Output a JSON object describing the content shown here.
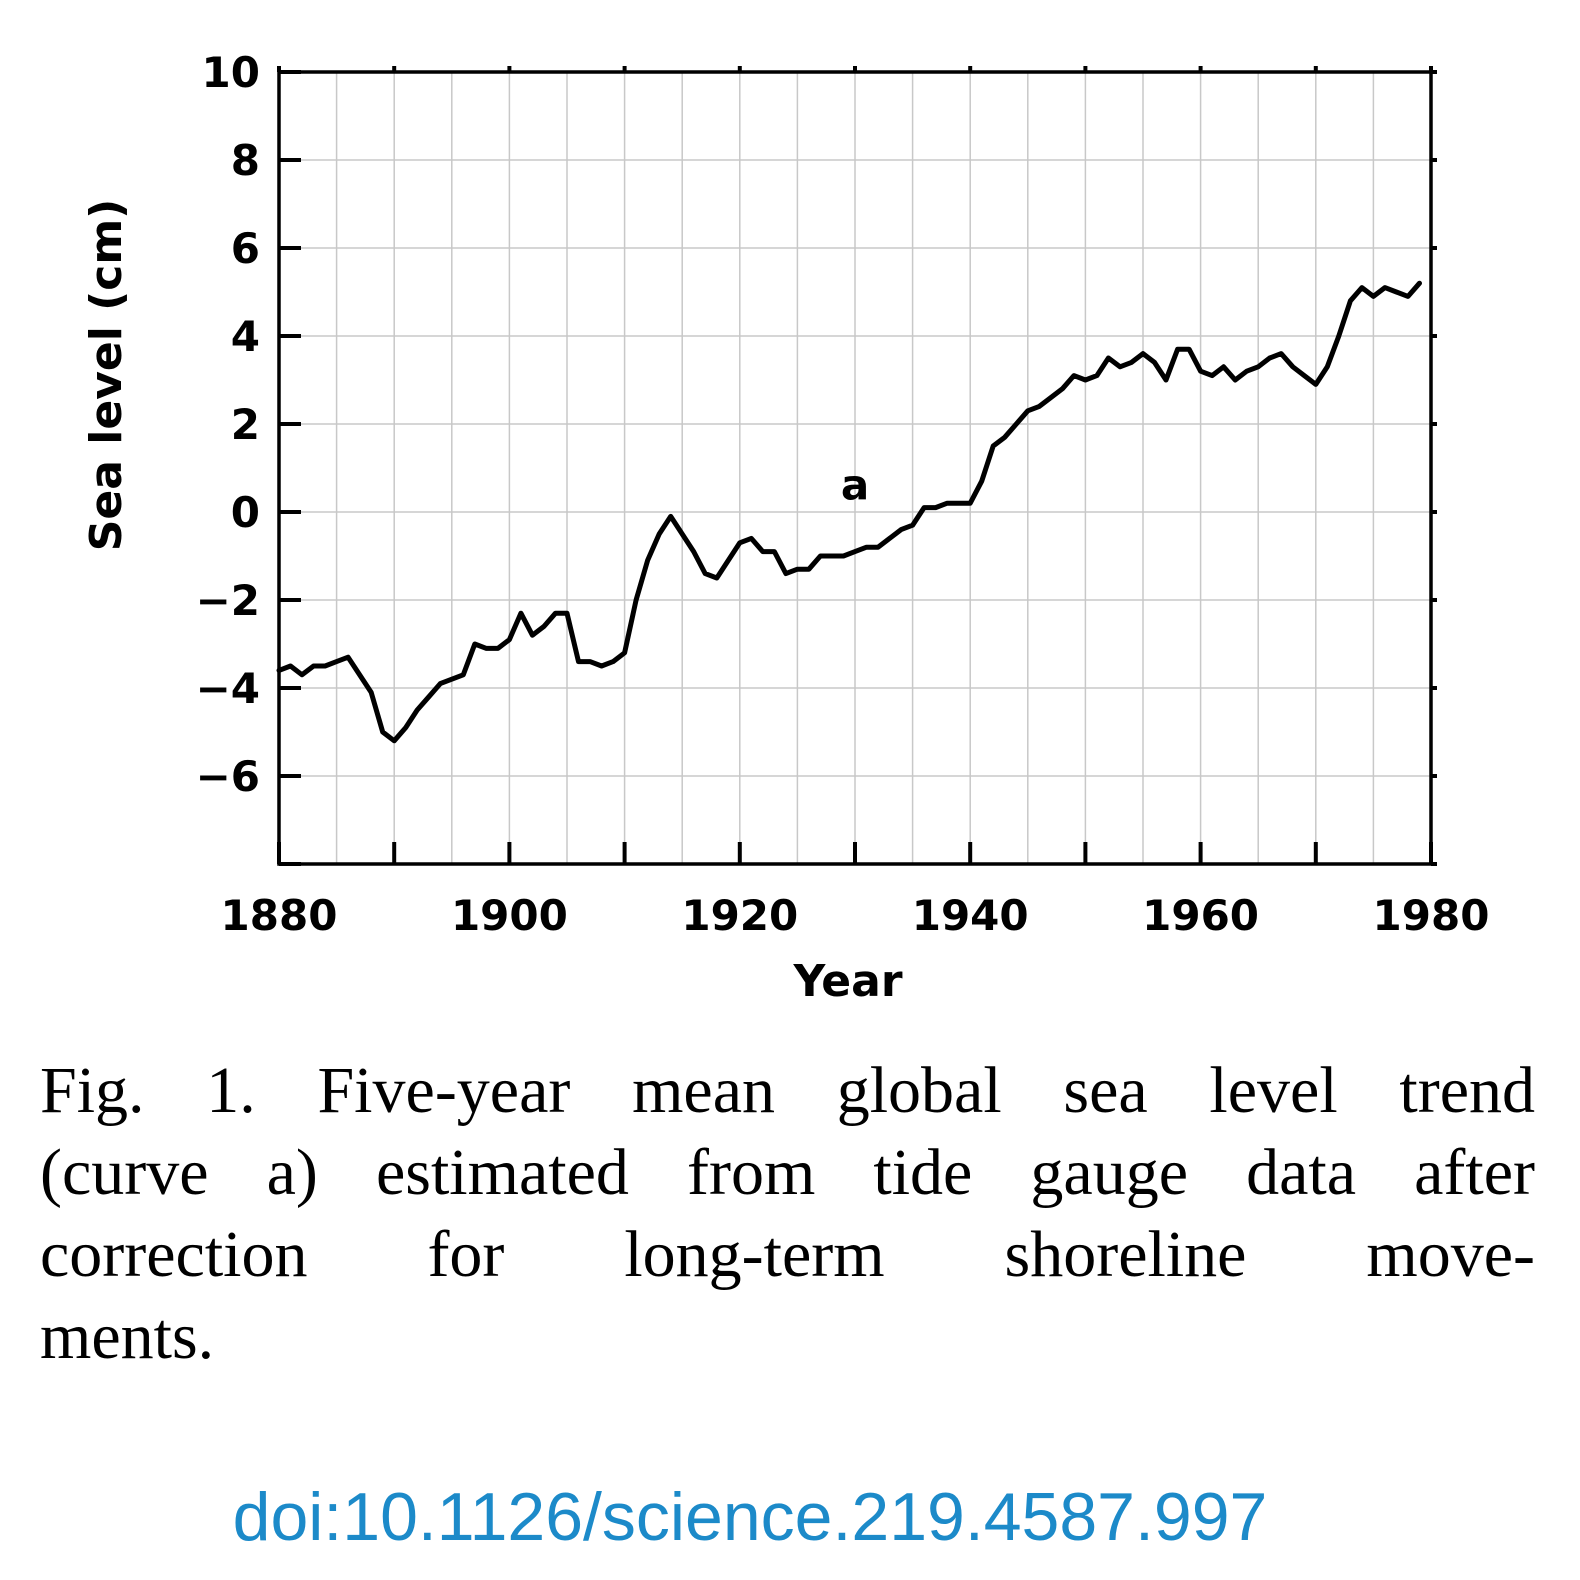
{
  "chart_data": {
    "type": "line",
    "xlabel": "Year",
    "ylabel": "Sea level (cm)",
    "xlim": [
      1880,
      1980
    ],
    "ylim": [
      -8,
      10
    ],
    "x_ticks": [
      1880,
      1900,
      1920,
      1940,
      1960,
      1980
    ],
    "y_ticks": [
      10,
      8,
      6,
      4,
      2,
      0,
      -2,
      -4,
      -6
    ],
    "y_tick_labels": [
      "10",
      "8",
      "6",
      "4",
      "2",
      "0",
      "−2",
      "−4",
      "−6"
    ],
    "grid": true,
    "annotations": [
      {
        "text": "a",
        "x": 1930,
        "y": 0.6
      }
    ],
    "series": [
      {
        "label": "a",
        "x": [
          1880,
          1881,
          1882,
          1883,
          1884,
          1885,
          1886,
          1887,
          1888,
          1889,
          1890,
          1891,
          1892,
          1893,
          1894,
          1895,
          1896,
          1897,
          1898,
          1899,
          1900,
          1901,
          1902,
          1903,
          1904,
          1905,
          1906,
          1907,
          1908,
          1909,
          1910,
          1911,
          1912,
          1913,
          1914,
          1915,
          1916,
          1917,
          1918,
          1919,
          1920,
          1921,
          1922,
          1923,
          1924,
          1925,
          1926,
          1927,
          1928,
          1929,
          1930,
          1931,
          1932,
          1933,
          1934,
          1935,
          1936,
          1937,
          1938,
          1939,
          1940,
          1941,
          1942,
          1943,
          1944,
          1945,
          1946,
          1947,
          1948,
          1949,
          1950,
          1951,
          1952,
          1953,
          1954,
          1955,
          1956,
          1957,
          1958,
          1959,
          1960,
          1961,
          1962,
          1963,
          1964,
          1965,
          1966,
          1967,
          1968,
          1969,
          1970,
          1971,
          1972,
          1973,
          1974,
          1975,
          1976,
          1977,
          1978,
          1979
        ],
        "y": [
          -3.6,
          -3.5,
          -3.7,
          -3.5,
          -3.5,
          -3.4,
          -3.3,
          -3.7,
          -4.1,
          -5.0,
          -5.2,
          -4.9,
          -4.5,
          -4.2,
          -3.9,
          -3.8,
          -3.7,
          -3.0,
          -3.1,
          -3.1,
          -2.9,
          -2.3,
          -2.8,
          -2.6,
          -2.3,
          -2.3,
          -3.4,
          -3.4,
          -3.5,
          -3.4,
          -3.2,
          -2.0,
          -1.1,
          -0.5,
          -0.1,
          -0.5,
          -0.9,
          -1.4,
          -1.5,
          -1.1,
          -0.7,
          -0.6,
          -0.9,
          -0.9,
          -1.4,
          -1.3,
          -1.3,
          -1.0,
          -1.0,
          -1.0,
          -0.9,
          -0.8,
          -0.8,
          -0.6,
          -0.4,
          -0.3,
          0.1,
          0.1,
          0.2,
          0.2,
          0.2,
          0.7,
          1.5,
          1.7,
          2.0,
          2.3,
          2.4,
          2.6,
          2.8,
          3.1,
          3.0,
          3.1,
          3.5,
          3.3,
          3.4,
          3.6,
          3.4,
          3.0,
          3.7,
          3.7,
          3.2,
          3.1,
          3.3,
          3.0,
          3.2,
          3.3,
          3.5,
          3.6,
          3.3,
          3.1,
          2.9,
          3.3,
          4.0,
          4.8,
          5.1,
          4.9,
          5.1,
          5.0,
          4.9,
          5.2
        ]
      }
    ]
  },
  "caption": {
    "line1": "Fig. 1. Five-year mean global sea level trend",
    "line2": "(curve a) estimated from tide gauge data after",
    "line3": "correction for long-term shoreline move-",
    "line4": "ments."
  },
  "doi": "doi:10.1126/science.219.4587.997",
  "colors": {
    "line": "#000000",
    "grid": "#c8c8c8",
    "doi": "#1c8ac9"
  }
}
